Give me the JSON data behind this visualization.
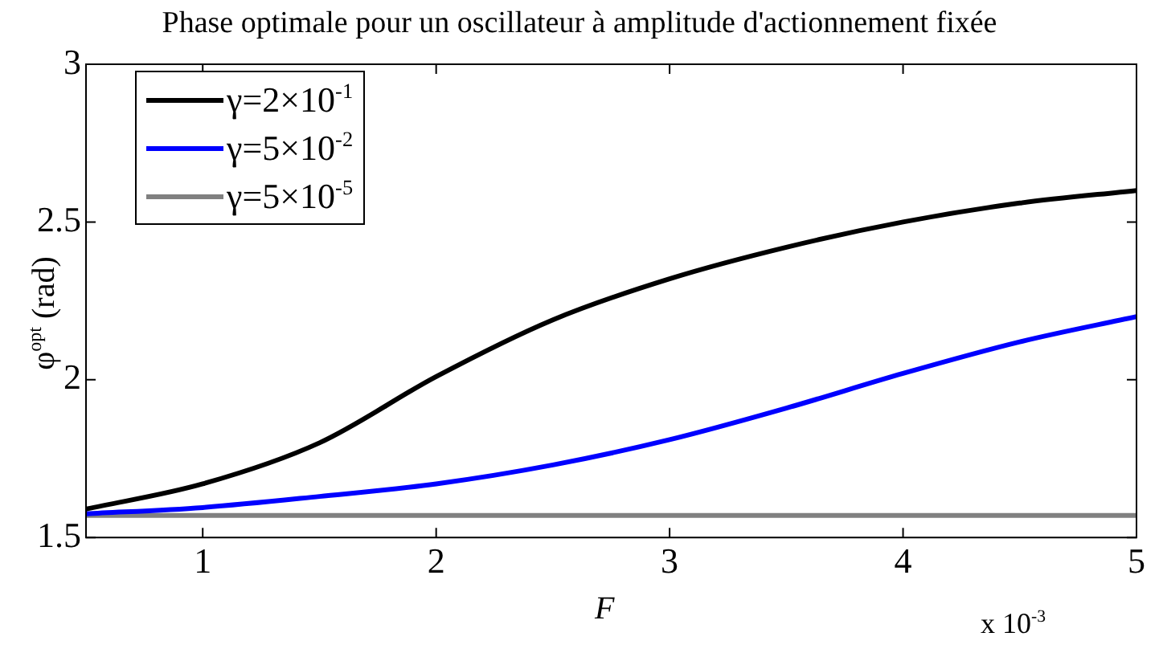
{
  "chart_data": {
    "type": "line",
    "title": "Phase optimale pour un oscillateur à amplitude d'actionnement fixée",
    "xlabel": "F",
    "ylabel": "φ$^{opt}$ (rad)",
    "annotations": [
      "x 10$^{-3}$"
    ],
    "x": [
      0.5,
      1,
      1.5,
      2,
      2.5,
      3,
      3.5,
      4,
      4.5,
      5
    ],
    "series": [
      {
        "name": "γ=2×10$^{-1}$",
        "color": "#000000",
        "values": [
          1.59,
          1.67,
          1.8,
          2.01,
          2.19,
          2.32,
          2.42,
          2.5,
          2.56,
          2.6
        ]
      },
      {
        "name": "γ=5×10$^{-2}$",
        "color": "#0000ff",
        "values": [
          1.575,
          1.595,
          1.63,
          1.67,
          1.73,
          1.81,
          1.91,
          2.02,
          2.12,
          2.2
        ]
      },
      {
        "name": "γ=5×10$^{-5}$",
        "color": "#808080",
        "values": [
          1.57,
          1.57,
          1.57,
          1.57,
          1.57,
          1.57,
          1.57,
          1.57,
          1.57,
          1.57
        ]
      }
    ],
    "xlim": [
      0.5,
      5
    ],
    "xticks": [
      1,
      2,
      3,
      4,
      5
    ],
    "ylim": [
      1.5,
      3
    ],
    "yticks": [
      1.5,
      2,
      2.5,
      3
    ],
    "grid": false,
    "legend": "top left",
    "marker": "none",
    "line_style": "solid"
  }
}
